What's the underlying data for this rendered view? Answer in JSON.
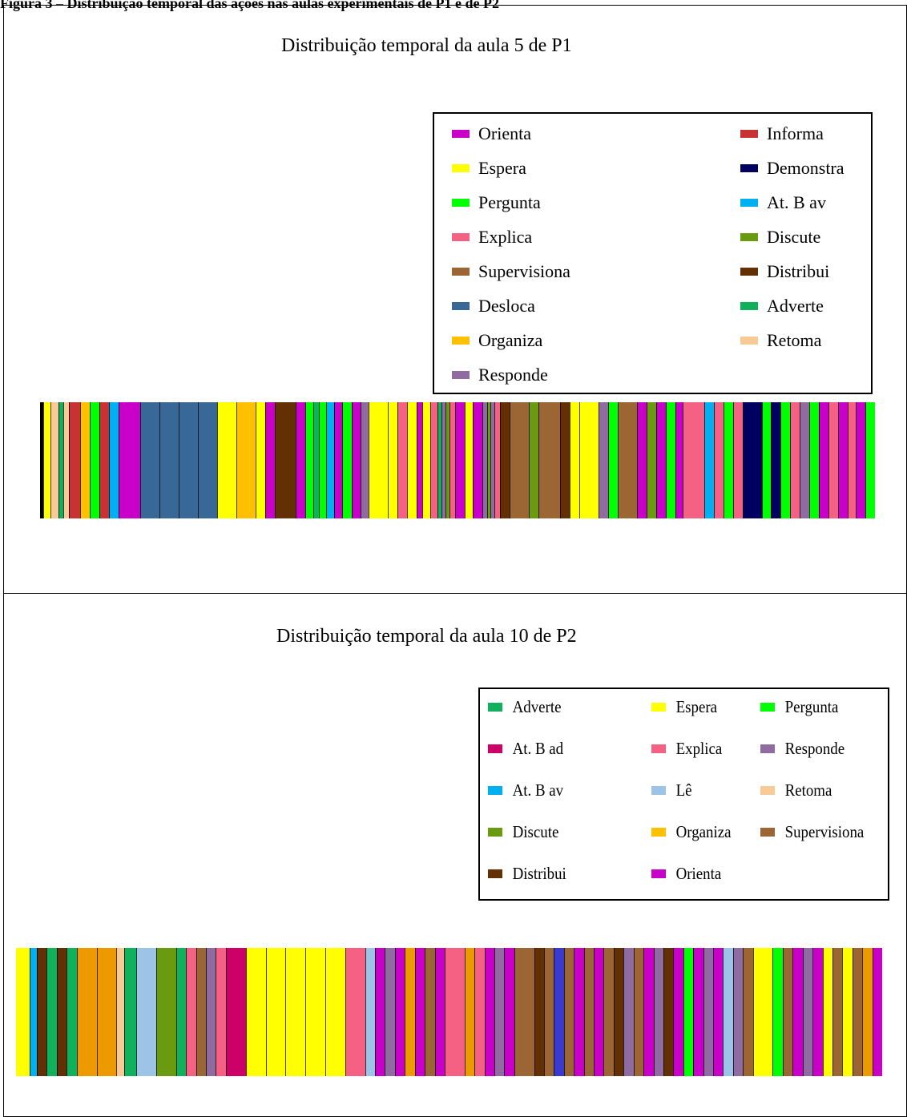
{
  "caption": "Figura 3 – Distribuição temporal das ações nas aulas experimentais de P1 e de P2",
  "colors": {
    "Orienta": "#c800c8",
    "Informa": "#c83232",
    "Espera": "#ffff00",
    "Demonstra": "#000060",
    "Pergunta": "#00ff00",
    "At. B av": "#00b0f0",
    "Explica": "#f46182",
    "Discute": "#6a9a10",
    "Supervisiona": "#9c6534",
    "Distribui": "#633003",
    "Desloca": "#386895",
    "Adverte": "#10b05c",
    "Organiza": "#ffc000",
    "Retoma": "#f8cb96",
    "Responde": "#8f6ba2",
    "At. B ad": "#cc0066",
    "Lê": "#9dc3e6",
    "Organiza2": "#ec9a00",
    "Azul": "#3a3ad0",
    "Preto": "#000000"
  },
  "chart_data": [
    {
      "type": "timeline",
      "title": "Distribuição temporal da aula 5 de P1",
      "legend": [
        "Orienta",
        "Espera",
        "Pergunta",
        "Explica",
        "Supervisiona",
        "Desloca",
        "Organiza",
        "Responde",
        "Informa",
        "Demonstra",
        "At. B av",
        "Discute",
        "Distribui",
        "Adverte",
        "Retoma"
      ],
      "segments": [
        [
          "Preto",
          0.3
        ],
        [
          "Espera",
          0.8
        ],
        [
          "Retoma",
          0.8
        ],
        [
          "Adverte",
          0.5
        ],
        [
          "Retoma",
          0.6
        ],
        [
          "Informa",
          1.2
        ],
        [
          "Organiza",
          1.0
        ],
        [
          "Pergunta",
          1.0
        ],
        [
          "Informa",
          1.0
        ],
        [
          "At. B av",
          1.0
        ],
        [
          "Orienta",
          2.2
        ],
        [
          "Desloca",
          2.0
        ],
        [
          "Desloca",
          2.0
        ],
        [
          "Desloca",
          2.0
        ],
        [
          "Desloca",
          2.0
        ],
        [
          "Espera",
          2.0
        ],
        [
          "Organiza",
          2.0
        ],
        [
          "Espera",
          1.0
        ],
        [
          "Orienta",
          1.0
        ],
        [
          "Distribui",
          2.2
        ],
        [
          "Orienta",
          1.0
        ],
        [
          "Pergunta",
          0.8
        ],
        [
          "Adverte",
          0.6
        ],
        [
          "Pergunta",
          0.8
        ],
        [
          "At. B av",
          0.8
        ],
        [
          "Orienta",
          0.8
        ],
        [
          "Pergunta",
          1.0
        ],
        [
          "Orienta",
          1.0
        ],
        [
          "Responde",
          0.8
        ],
        [
          "Espera",
          2.0
        ],
        [
          "Espera",
          1.0
        ],
        [
          "Explica",
          1.0
        ],
        [
          "Espera",
          1.0
        ],
        [
          "Orienta",
          0.6
        ],
        [
          "Espera",
          0.8
        ],
        [
          "Explica",
          0.8
        ],
        [
          "Adverte",
          0.4
        ],
        [
          "Responde",
          0.4
        ],
        [
          "Discute",
          0.4
        ],
        [
          "Explica",
          0.6
        ],
        [
          "Orienta",
          1.0
        ],
        [
          "Espera",
          0.8
        ],
        [
          "Orienta",
          1.0
        ],
        [
          "Responde",
          0.5
        ],
        [
          "Discute",
          0.4
        ],
        [
          "Responde",
          0.4
        ],
        [
          "Explica",
          0.6
        ],
        [
          "Distribui",
          1.0
        ],
        [
          "Supervisiona",
          2.0
        ],
        [
          "Discute",
          1.0
        ],
        [
          "Supervisiona",
          2.2
        ],
        [
          "Distribui",
          1.0
        ],
        [
          "Espera",
          1.0
        ],
        [
          "Espera",
          2.0
        ],
        [
          "Responde",
          1.0
        ],
        [
          "Pergunta",
          1.0
        ],
        [
          "Supervisiona",
          2.0
        ],
        [
          "Orienta",
          1.0
        ],
        [
          "Discute",
          1.0
        ],
        [
          "Orienta",
          1.0
        ],
        [
          "Pergunta",
          1.0
        ],
        [
          "Orienta",
          0.8
        ],
        [
          "Explica",
          2.2
        ],
        [
          "At. B av",
          1.0
        ],
        [
          "Explica",
          1.0
        ],
        [
          "Pergunta",
          1.0
        ],
        [
          "Explica",
          1.0
        ],
        [
          "Demonstra",
          2.0
        ],
        [
          "Pergunta",
          1.0
        ],
        [
          "Demonstra",
          1.0
        ],
        [
          "Pergunta",
          1.0
        ],
        [
          "Explica",
          1.0
        ],
        [
          "Responde",
          1.0
        ],
        [
          "Pergunta",
          1.0
        ],
        [
          "Orienta",
          1.0
        ],
        [
          "Explica",
          1.0
        ],
        [
          "Orienta",
          1.0
        ],
        [
          "Explica",
          0.8
        ],
        [
          "Orienta",
          1.0
        ],
        [
          "Pergunta",
          1.0
        ]
      ]
    },
    {
      "type": "timeline",
      "title": "Distribuição temporal da aula 10 de P2",
      "legend": [
        "Adverte",
        "At. B ad",
        "At. B av",
        "Discute",
        "Distribui",
        "Espera",
        "Explica",
        "Lê",
        "Organiza",
        "Orienta",
        "Pergunta",
        "Responde",
        "Retoma",
        "Supervisiona"
      ],
      "segments": [
        [
          "Espera",
          1.4
        ],
        [
          "At. B av",
          0.7
        ],
        [
          "Distribui",
          1.0
        ],
        [
          "Adverte",
          1.0
        ],
        [
          "Distribui",
          1.0
        ],
        [
          "Adverte",
          1.0
        ],
        [
          "Organiza2",
          2.0
        ],
        [
          "Organiza2",
          2.0
        ],
        [
          "Retoma",
          0.8
        ],
        [
          "Adverte",
          1.2
        ],
        [
          "Lê",
          2.0
        ],
        [
          "Discute",
          2.0
        ],
        [
          "Adverte",
          1.0
        ],
        [
          "Explica",
          1.0
        ],
        [
          "Supervisiona",
          1.0
        ],
        [
          "Responde",
          1.0
        ],
        [
          "Explica",
          1.0
        ],
        [
          "At. B ad",
          2.0
        ],
        [
          "Espera",
          2.0
        ],
        [
          "Espera",
          2.0
        ],
        [
          "Espera",
          2.0
        ],
        [
          "Espera",
          2.0
        ],
        [
          "Espera",
          2.0
        ],
        [
          "Explica",
          2.0
        ],
        [
          "Lê",
          1.0
        ],
        [
          "Orienta",
          1.0
        ],
        [
          "Responde",
          1.0
        ],
        [
          "Orienta",
          1.0
        ],
        [
          "Organiza2",
          1.0
        ],
        [
          "Orienta",
          1.0
        ],
        [
          "Supervisiona",
          1.0
        ],
        [
          "Orienta",
          1.0
        ],
        [
          "Explica",
          2.0
        ],
        [
          "Organiza2",
          1.0
        ],
        [
          "Explica",
          1.0
        ],
        [
          "Orienta",
          1.0
        ],
        [
          "Responde",
          1.0
        ],
        [
          "Orienta",
          1.0
        ],
        [
          "Supervisiona",
          2.0
        ],
        [
          "Distribui",
          1.0
        ],
        [
          "Supervisiona",
          1.0
        ],
        [
          "Azul",
          1.0
        ],
        [
          "Supervisiona",
          1.0
        ],
        [
          "Orienta",
          1.0
        ],
        [
          "Supervisiona",
          1.0
        ],
        [
          "Orienta",
          1.0
        ],
        [
          "Supervisiona",
          1.0
        ],
        [
          "Distribui",
          1.0
        ],
        [
          "Responde",
          1.0
        ],
        [
          "Supervisiona",
          1.0
        ],
        [
          "Orienta",
          1.0
        ],
        [
          "Responde",
          1.0
        ],
        [
          "Distribui",
          1.0
        ],
        [
          "Orienta",
          1.0
        ],
        [
          "Pergunta",
          1.0
        ],
        [
          "Orienta",
          1.0
        ],
        [
          "Responde",
          1.0
        ],
        [
          "Orienta",
          1.0
        ],
        [
          "Lê",
          1.0
        ],
        [
          "Responde",
          1.0
        ],
        [
          "Supervisiona",
          1.0
        ],
        [
          "Espera",
          2.0
        ],
        [
          "Pergunta",
          1.0
        ],
        [
          "Supervisiona",
          1.0
        ],
        [
          "Orienta",
          1.0
        ],
        [
          "Responde",
          1.0
        ],
        [
          "Orienta",
          1.0
        ],
        [
          "Espera",
          1.0
        ],
        [
          "Supervisiona",
          1.0
        ],
        [
          "Espera",
          1.0
        ],
        [
          "Supervisiona",
          1.0
        ],
        [
          "Organiza2",
          1.0
        ],
        [
          "Orienta",
          1.0
        ]
      ]
    }
  ]
}
